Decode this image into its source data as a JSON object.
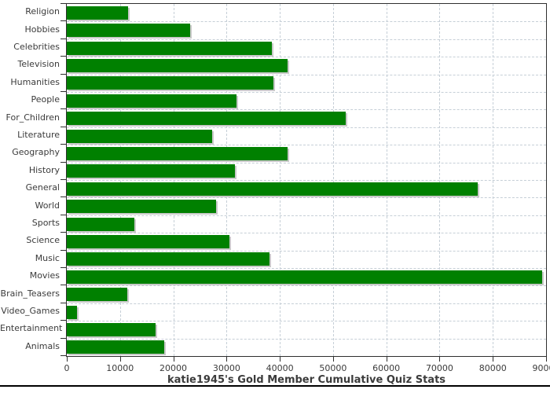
{
  "chart_data": {
    "type": "bar",
    "orientation": "horizontal",
    "title": "katie1945's Gold Member Cumulative Quiz Stats",
    "xlabel": "",
    "ylabel": "",
    "xlim": [
      0,
      90000
    ],
    "x_ticks": [
      0,
      10000,
      20000,
      30000,
      40000,
      50000,
      60000,
      70000,
      80000,
      90000
    ],
    "grid": true,
    "legend": "none",
    "categories": [
      "Religion",
      "Hobbies",
      "Celebrities",
      "Television",
      "Humanities",
      "People",
      "For_Children",
      "Literature",
      "Geography",
      "History",
      "General",
      "World",
      "Sports",
      "Science",
      "Music",
      "Movies",
      "Brain_Teasers",
      "Video_Games",
      "Entertainment",
      "Animals"
    ],
    "values": [
      11500,
      23100,
      38500,
      41500,
      38800,
      31800,
      52400,
      27300,
      41400,
      31500,
      77100,
      28100,
      12700,
      30500,
      38100,
      89200,
      11400,
      1900,
      16700,
      18300
    ],
    "colors": {
      "bar": "#008000",
      "bar_shadow": "#c9c9c9",
      "grid": "#c6cfd7",
      "axis": "#2f2f2f",
      "text": "#3b3b3b",
      "background": "#ffffff",
      "bottom_rule": "#000000"
    }
  }
}
